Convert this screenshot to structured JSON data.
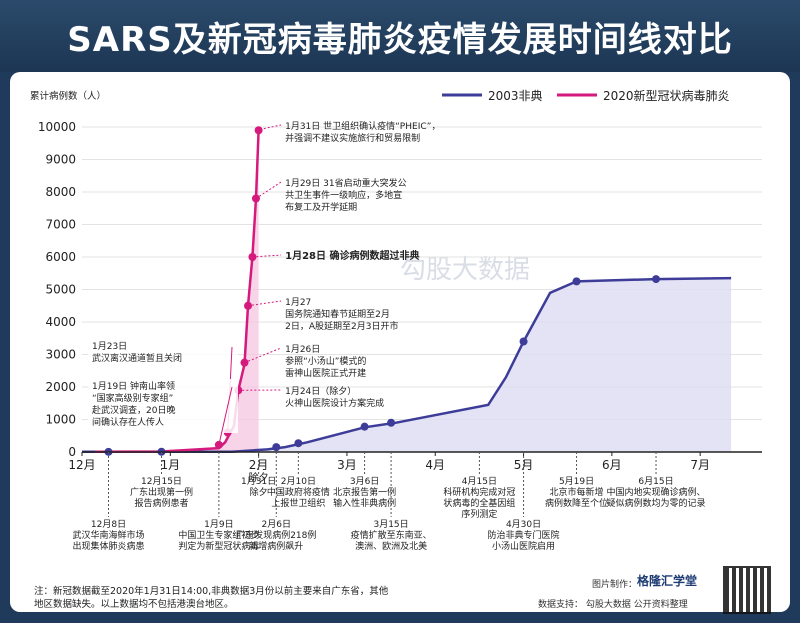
{
  "title": "SARS及新冠病毒肺炎疫情发展时间线对比",
  "footnote": "注：新冠数据截至2020年1月31日14:00,非典数据3月份以前主要来自广东省，其他地区数据缺失。以上数据均不包括港澳台地区。",
  "credits": {
    "maker": "图片制作：",
    "brand": "格隆汇学堂",
    "support": "数据支持：  勾股大数据  公开资料整理"
  },
  "watermark": "勾股大数据",
  "colors": {
    "sars": "#3d3d99",
    "sars_fill": "#dcdcf3",
    "ncov": "#d6197d",
    "ncov_fill": "#f6c6e2",
    "bg": "#1f3a5a"
  },
  "chart_data": {
    "type": "line",
    "ylabel": "累计病例数（人）",
    "ylim": [
      0,
      10000
    ],
    "yticks": [
      0,
      1000,
      2000,
      3000,
      4000,
      5000,
      6000,
      7000,
      8000,
      9000,
      10000
    ],
    "x_axis_labels": [
      "12月",
      "1月",
      "2月",
      "3月",
      "4月",
      "5月",
      "6月",
      "7月"
    ],
    "x_note_2feb": "除夕",
    "series": [
      {
        "name": "2003非典",
        "key": "sars",
        "points": [
          [
            0,
            5
          ],
          [
            0.9,
            8
          ],
          [
            1.7,
            10
          ],
          [
            2.1,
            80
          ],
          [
            2.3,
            150
          ],
          [
            2.55,
            300
          ],
          [
            3.2,
            760
          ],
          [
            3.55,
            900
          ],
          [
            4.6,
            1450
          ],
          [
            4.8,
            2300
          ],
          [
            5.0,
            3400
          ],
          [
            5.3,
            4900
          ],
          [
            5.6,
            5250
          ],
          [
            6.5,
            5320
          ],
          [
            7.35,
            5350
          ]
        ],
        "markers": [
          [
            0.3,
            5
          ],
          [
            0.9,
            8
          ],
          [
            2.2,
            150
          ],
          [
            2.45,
            270
          ],
          [
            3.2,
            780
          ],
          [
            3.5,
            900
          ],
          [
            5.0,
            3400
          ],
          [
            5.6,
            5250
          ],
          [
            6.5,
            5320
          ]
        ]
      },
      {
        "name": "2020新型冠状病毒肺炎",
        "key": "ncov",
        "points": [
          [
            0.15,
            5
          ],
          [
            0.9,
            15
          ],
          [
            1.55,
            120
          ],
          [
            1.62,
            300
          ],
          [
            1.72,
            800
          ],
          [
            1.77,
            1900
          ],
          [
            1.84,
            2700
          ],
          [
            1.88,
            4500
          ],
          [
            1.93,
            6000
          ],
          [
            1.97,
            7800
          ],
          [
            2.0,
            9900
          ]
        ],
        "markers": [
          [
            1.55,
            220
          ],
          [
            1.65,
            600
          ],
          [
            1.77,
            1900
          ],
          [
            1.84,
            2750
          ],
          [
            1.88,
            4500
          ],
          [
            1.93,
            6000
          ],
          [
            1.97,
            7800
          ],
          [
            2.0,
            9900
          ]
        ]
      }
    ],
    "upper_annotations": [
      {
        "x": 1.97,
        "y": 9900,
        "lines": [
          "1月31日 世卫组织确认疫情“PHEIC”，",
          "并强调不建议实施旅行和贸易限制"
        ],
        "bold": false
      },
      {
        "x": 1.97,
        "y": 7800,
        "lines": [
          "1月29日 31省启动重大突发公",
          "共卫生事件一级响应，多地宣",
          "布复工及开学延期"
        ],
        "bold": false
      },
      {
        "x": 1.93,
        "y": 6000,
        "lines": [
          "1月28日 确诊病例数超过非典"
        ],
        "bold": true
      },
      {
        "x": 1.88,
        "y": 4500,
        "lines": [
          "1月27",
          "国务院通知春节延期至2月",
          "2日，A股延期至2月3日开市"
        ],
        "bold": false
      },
      {
        "x": 1.84,
        "y": 2750,
        "lines": [
          "1月26日",
          "参照“小汤山”模式的",
          "雷神山医院正式开建"
        ],
        "bold": false
      },
      {
        "x": 1.77,
        "y": 1900,
        "lines": [
          "1月24日（除夕）",
          "火神山医院设计方案完成"
        ],
        "bold": false
      }
    ],
    "left_annotations": [
      {
        "x": 1.65,
        "y": 600,
        "lines": [
          "1月23日",
          "武汉离汉通道暂且关闭"
        ]
      },
      {
        "x": 1.55,
        "y": 220,
        "lines": [
          "1月19日 钟南山率领",
          "“国家高级别专家组”",
          "赴武汉调查，20日晚",
          "间确认存在人传人"
        ]
      }
    ],
    "lower_annotations": [
      {
        "x": 0.3,
        "lines": [
          "12月8日",
          "武汉华南海鲜市场",
          "出现集体肺炎病患"
        ]
      },
      {
        "x": 0.9,
        "lines": [
          "12月15日",
          "广东出现第一例",
          "报告病例患者"
        ]
      },
      {
        "x": 1.55,
        "lines": [
          "1月9日",
          "中国卫生专家组初步",
          "判定为新型冠状病毒"
        ]
      },
      {
        "x": 2.0,
        "lines": [
          "1月31日",
          "除夕"
        ]
      },
      {
        "x": 2.2,
        "lines": [
          "2月6日",
          "广东发现病例218例",
          "新增病例飙升"
        ]
      },
      {
        "x": 2.45,
        "lines": [
          "2月10日",
          "中国政府将疫情",
          "上报世卫组织"
        ]
      },
      {
        "x": 3.2,
        "lines": [
          "3月6日",
          "北京报告第一例",
          "输入性非典病例"
        ]
      },
      {
        "x": 3.5,
        "lines": [
          "3月15日",
          "疫情扩散至东南亚、",
          "澳洲、欧洲及北美"
        ]
      },
      {
        "x": 4.5,
        "lines": [
          "4月15日",
          "科研机构完成对冠",
          "状病毒的全基因组",
          "序列测定"
        ]
      },
      {
        "x": 5.0,
        "lines": [
          "4月30日",
          "防治非典专门医院",
          "小汤山医院启用"
        ]
      },
      {
        "x": 5.6,
        "lines": [
          "5月19日",
          "北京市每新增",
          "病例数降至个位"
        ]
      },
      {
        "x": 6.5,
        "lines": [
          "6月15日",
          "中国内地实现确诊病例、",
          "疑似病例数均为零的记录"
        ]
      }
    ]
  }
}
